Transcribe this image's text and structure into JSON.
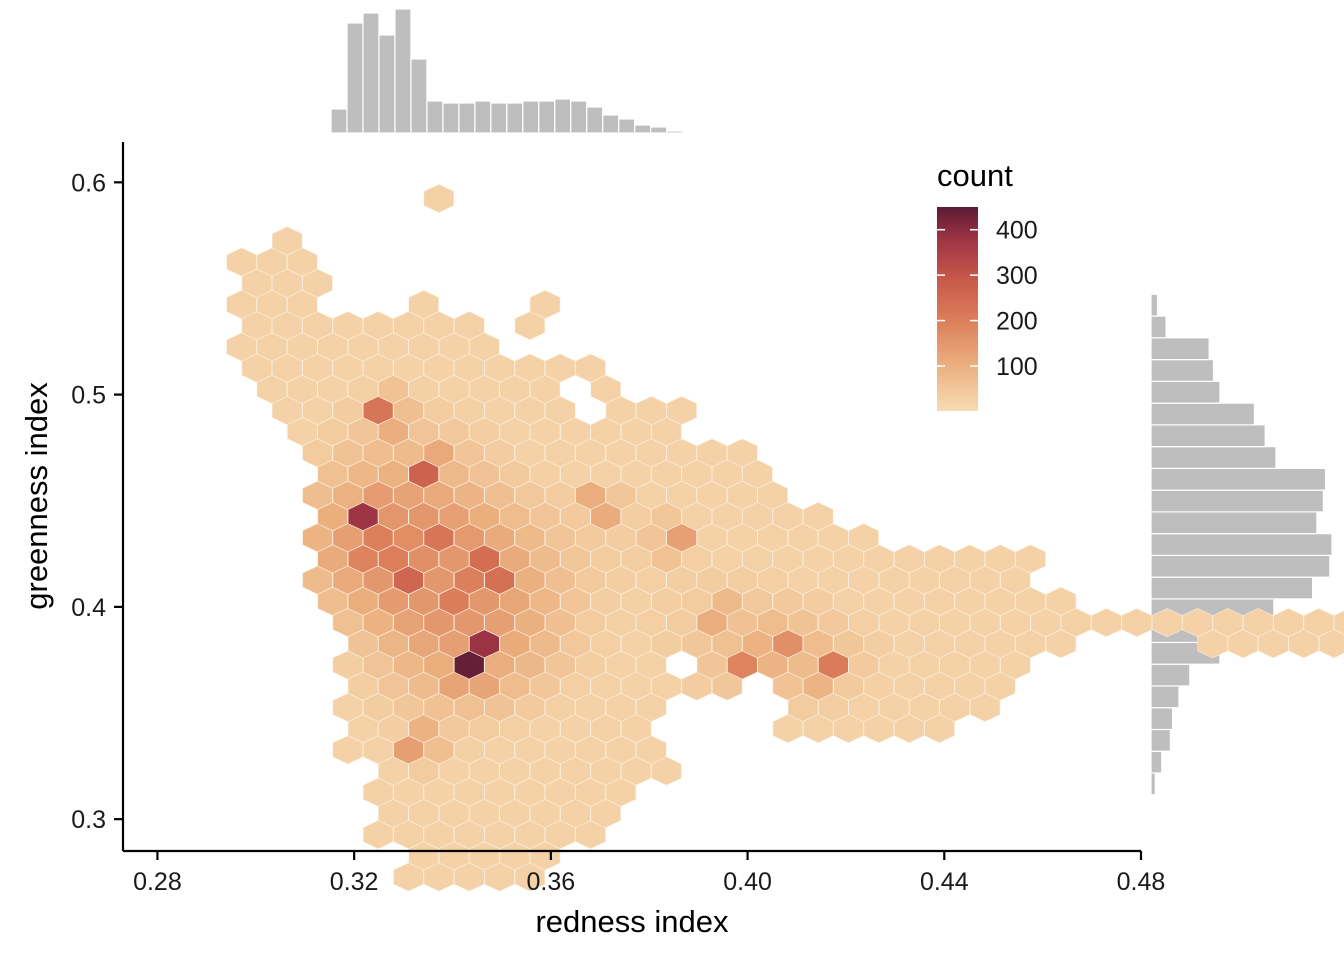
{
  "chart_data": {
    "type": "hexbin",
    "xlabel": "redness index",
    "ylabel": "greenness index",
    "xlim": [
      0.273,
      0.48
    ],
    "ylim": [
      0.285,
      0.619
    ],
    "x_ticks": [
      0.28,
      0.32,
      0.36,
      0.4,
      0.44,
      0.48
    ],
    "x_tick_labels": [
      "0.28",
      "0.32",
      "0.36",
      "0.40",
      "0.44",
      "0.48"
    ],
    "y_ticks": [
      0.3,
      0.4,
      0.5,
      0.6
    ],
    "y_tick_labels": [
      "0.3",
      "0.4",
      "0.5",
      "0.6"
    ],
    "legend": {
      "title": "count",
      "placement": "top-right",
      "range": [
        1,
        450
      ],
      "breaks": [
        100,
        200,
        300,
        400
      ],
      "break_labels": [
        "100",
        "200",
        "300",
        "400"
      ],
      "colors": [
        "#f7dcb3",
        "#ebb07f",
        "#dc7f5a",
        "#c65649",
        "#9b3344",
        "#5a1b34"
      ]
    },
    "grid": false,
    "hexbin_layout": {
      "x0": 0.3434,
      "y0": 0.3926,
      "dx": 0.003085,
      "dy": 0.00999,
      "columns": [
        {
          "i": -20,
          "r": [
            [
              19,
              19
            ]
          ]
        },
        {
          "i": -17,
          "r": [
            [
              16,
              16
            ]
          ]
        },
        {
          "i": -16,
          "r": [
            [
              15,
              15
            ]
          ]
        },
        {
          "i": -15,
          "r": [
            [
              13,
              17
            ]
          ]
        },
        {
          "i": -14,
          "r": [
            [
              11,
              14
            ],
            [
              16,
              16
            ]
          ]
        },
        {
          "i": -13,
          "r": [
            [
              11,
              17
            ]
          ]
        },
        {
          "i": -12,
          "r": [
            [
              10,
              12
            ],
            [
              14,
              18
            ]
          ]
        },
        {
          "i": -11,
          "r": [
            [
              9,
              17
            ]
          ]
        },
        {
          "i": -10,
          "r": [
            [
              2,
              16
            ],
            [
              19,
              19
            ]
          ]
        },
        {
          "i": -9,
          "r": [
            [
              1,
              14
            ]
          ]
        },
        {
          "i": -8,
          "r": [
            [
              -6,
              15
            ]
          ]
        },
        {
          "i": -7,
          "r": [
            [
              -5,
              14
            ]
          ]
        },
        {
          "i": -6,
          "r": [
            [
              -10,
              14
            ]
          ]
        },
        {
          "i": -5,
          "r": [
            [
              -9,
              14
            ]
          ]
        },
        {
          "i": -4,
          "r": [
            [
              -12,
              14
            ],
            [
              21,
              21
            ]
          ]
        },
        {
          "i": -3,
          "r": [
            [
              -11,
              15
            ],
            [
              20,
              20
            ]
          ]
        },
        {
          "i": -2,
          "r": [
            [
              -12,
              14
            ],
            [
              20,
              21
            ]
          ]
        },
        {
          "i": -1,
          "r": [
            [
              -11,
              13
            ]
          ]
        },
        {
          "i": 0,
          "r": [
            [
              -12,
              14
            ],
            [
              17,
              17
            ]
          ]
        },
        {
          "i": 1,
          "r": [
            [
              -11,
              14
            ]
          ]
        },
        {
          "i": 2,
          "r": [
            [
              -12,
              13
            ]
          ]
        },
        {
          "i": 3,
          "r": [
            [
              -11,
              12
            ]
          ]
        },
        {
          "i": 4,
          "r": [
            [
              -12,
              14
            ]
          ]
        },
        {
          "i": 5,
          "r": [
            [
              -11,
              11
            ],
            [
              15,
              15
            ]
          ]
        },
        {
          "i": 6,
          "r": [
            [
              -10,
              13
            ]
          ]
        },
        {
          "i": 7,
          "r": [
            [
              -9,
              10
            ]
          ]
        },
        {
          "i": 8,
          "r": [
            [
              -10,
              8
            ],
            [
              12,
              12
            ]
          ]
        },
        {
          "i": 9,
          "r": [
            [
              -9,
              11
            ]
          ]
        },
        {
          "i": 10,
          "r": [
            [
              -8,
              -6
            ],
            [
              -4,
              10
            ]
          ]
        },
        {
          "i": 11,
          "r": [
            [
              -7,
              -5
            ],
            [
              -3,
              9
            ]
          ]
        },
        {
          "i": 12,
          "r": [
            [
              -6,
              10
            ]
          ]
        },
        {
          "i": 13,
          "r": [
            [
              -7,
              -6
            ],
            [
              -4,
              9
            ]
          ]
        },
        {
          "i": 14,
          "r": [
            [
              -1,
              10
            ]
          ]
        },
        {
          "i": 15,
          "r": [
            [
              -4,
              7
            ]
          ]
        },
        {
          "i": 16,
          "r": [
            [
              -3,
              8
            ]
          ]
        },
        {
          "i": 17,
          "r": [
            [
              -4,
              7
            ]
          ]
        },
        {
          "i": 18,
          "r": [
            [
              -3,
              8
            ]
          ]
        },
        {
          "i": 19,
          "r": [
            [
              -2,
              7
            ]
          ]
        },
        {
          "i": 20,
          "r": [
            [
              -3,
              7
            ]
          ]
        },
        {
          "i": 21,
          "r": [
            [
              -6,
              6
            ]
          ]
        },
        {
          "i": 22,
          "r": [
            [
              -5,
              5
            ]
          ]
        },
        {
          "i": 23,
          "r": [
            [
              -6,
              6
            ]
          ]
        },
        {
          "i": 24,
          "r": [
            [
              -5,
              5
            ]
          ]
        },
        {
          "i": 25,
          "r": [
            [
              -6,
              4
            ]
          ]
        },
        {
          "i": 26,
          "r": [
            [
              -5,
              5
            ]
          ]
        },
        {
          "i": 27,
          "r": [
            [
              -6,
              4
            ]
          ]
        },
        {
          "i": 28,
          "r": [
            [
              -5,
              3
            ]
          ]
        },
        {
          "i": 29,
          "r": [
            [
              -6,
              4
            ]
          ]
        },
        {
          "i": 30,
          "r": [
            [
              -5,
              3
            ]
          ]
        },
        {
          "i": 31,
          "r": [
            [
              -6,
              4
            ]
          ]
        },
        {
          "i": 32,
          "r": [
            [
              -5,
              3
            ]
          ]
        },
        {
          "i": 33,
          "r": [
            [
              -4,
              4
            ]
          ]
        },
        {
          "i": 34,
          "r": [
            [
              -5,
              3
            ]
          ]
        },
        {
          "i": 35,
          "r": [
            [
              -4,
              4
            ]
          ]
        },
        {
          "i": 36,
          "r": [
            [
              -3,
              3
            ]
          ]
        },
        {
          "i": 37,
          "r": [
            [
              -2,
              4
            ]
          ]
        },
        {
          "i": 38,
          "r": [
            [
              -1,
              1
            ]
          ]
        },
        {
          "i": 39,
          "r": [
            [
              -2,
              2
            ]
          ]
        },
        {
          "i": 40,
          "r": [
            [
              -1,
              1
            ]
          ]
        },
        {
          "i": 41,
          "r": [
            [
              0,
              0
            ]
          ]
        },
        {
          "i": 42,
          "r": [
            [
              -1,
              1
            ]
          ]
        },
        {
          "i": 43,
          "r": [
            [
              0,
              0
            ]
          ]
        },
        {
          "i": 44,
          "r": [
            [
              -1,
              1
            ]
          ]
        },
        {
          "i": 45,
          "r": [
            [
              0,
              0
            ]
          ]
        },
        {
          "i": 46,
          "r": [
            [
              -1,
              1
            ]
          ]
        },
        {
          "i": 47,
          "r": [
            [
              0,
              0
            ]
          ]
        },
        {
          "i": 48,
          "r": [
            [
              -1,
              1
            ]
          ]
        },
        {
          "i": 49,
          "r": [
            [
              -2,
              0
            ]
          ]
        },
        {
          "i": 50,
          "r": [
            [
              -1,
              1
            ]
          ]
        },
        {
          "i": 51,
          "r": [
            [
              -2,
              0
            ]
          ]
        },
        {
          "i": 52,
          "r": [
            [
              -1,
              1
            ]
          ]
        },
        {
          "i": 53,
          "r": [
            [
              -2,
              0
            ]
          ]
        },
        {
          "i": 54,
          "r": [
            [
              -1,
              1
            ]
          ]
        },
        {
          "i": 55,
          "r": [
            [
              -2,
              0
            ]
          ]
        },
        {
          "i": 56,
          "r": [
            [
              -1,
              1
            ]
          ]
        },
        {
          "i": 57,
          "r": [
            [
              -2,
              0
            ]
          ]
        },
        {
          "i": 58,
          "r": [
            [
              -1,
              1
            ]
          ]
        },
        {
          "i": 59,
          "r": [
            [
              -2,
              0
            ]
          ]
        },
        {
          "i": 60,
          "r": [
            [
              -1,
              1
            ]
          ]
        },
        {
          "i": 61,
          "r": [
            [
              -2,
              0
            ]
          ]
        },
        {
          "i": 62,
          "r": [
            [
              -1,
              1
            ]
          ]
        },
        {
          "i": 63,
          "r": [
            [
              -2,
              0
            ]
          ]
        }
      ]
    },
    "density_peaks": [
      {
        "x": 0.3234,
        "y": 0.442,
        "count": 430
      },
      {
        "x": 0.3434,
        "y": 0.372,
        "count": 440
      },
      {
        "x": 0.3459,
        "y": 0.383,
        "count": 390
      },
      {
        "x": 0.347,
        "y": 0.416,
        "count": 360
      },
      {
        "x": 0.329,
        "y": 0.412,
        "count": 320
      },
      {
        "x": 0.325,
        "y": 0.425,
        "count": 330
      },
      {
        "x": 0.3346,
        "y": 0.431,
        "count": 320
      },
      {
        "x": 0.3409,
        "y": 0.409,
        "count": 300
      },
      {
        "x": 0.335,
        "y": 0.464,
        "count": 280
      },
      {
        "x": 0.326,
        "y": 0.491,
        "count": 240
      },
      {
        "x": 0.416,
        "y": 0.372,
        "count": 230
      },
      {
        "x": 0.406,
        "y": 0.382,
        "count": 210
      },
      {
        "x": 0.4,
        "y": 0.372,
        "count": 200
      },
      {
        "x": 0.385,
        "y": 0.432,
        "count": 150
      },
      {
        "x": 0.395,
        "y": 0.395,
        "count": 140
      },
      {
        "x": 0.37,
        "y": 0.448,
        "count": 150
      },
      {
        "x": 0.333,
        "y": 0.335,
        "count": 170
      }
    ],
    "x_marginal": {
      "type": "bar",
      "bins_start": 0.3153,
      "bin_width": 0.00325,
      "values": [
        12,
        55,
        60,
        49,
        62,
        37,
        16,
        15,
        15,
        16,
        15,
        15,
        16,
        16,
        17,
        16,
        13,
        9,
        7,
        4,
        3,
        1,
        0.3
      ]
    },
    "y_marginal": {
      "type": "bar",
      "bins_start": 0.3115,
      "bin_width": 0.01025,
      "values": [
        2,
        5,
        9,
        10,
        13,
        18,
        32,
        61,
        57,
        75,
        83,
        84,
        77,
        80,
        81,
        58,
        53,
        48,
        32,
        29,
        27,
        7,
        3,
        0.5
      ]
    }
  }
}
